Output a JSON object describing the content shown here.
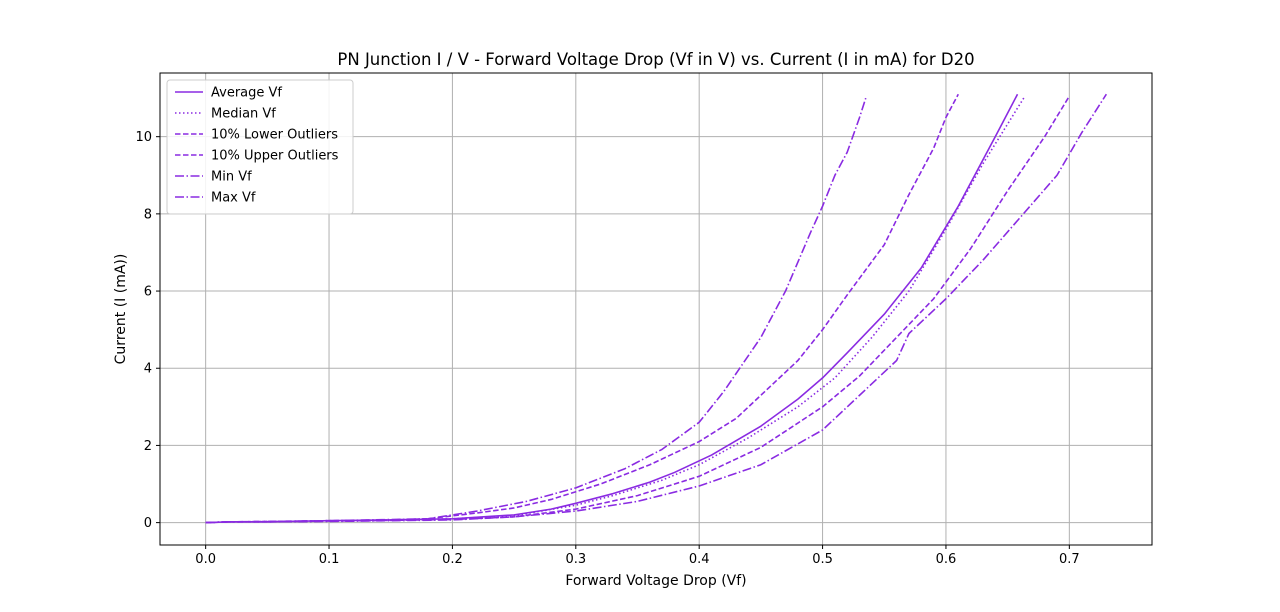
{
  "chart_data": {
    "type": "line",
    "title": "PN Junction I / V - Forward Voltage Drop (Vf in V) vs. Current (I in mA) for D20",
    "xlabel": "Forward Voltage Drop (Vf)",
    "ylabel": "Current (I (mA))",
    "xlim": [
      -0.037,
      0.767
    ],
    "ylim": [
      -0.58,
      11.65
    ],
    "xticks": [
      0.0,
      0.1,
      0.2,
      0.3,
      0.4,
      0.5,
      0.6,
      0.7
    ],
    "xtick_labels": [
      "0.0",
      "0.1",
      "0.2",
      "0.3",
      "0.4",
      "0.5",
      "0.6",
      "0.7"
    ],
    "yticks": [
      0,
      2,
      4,
      6,
      8,
      10
    ],
    "ytick_labels": [
      "0",
      "2",
      "4",
      "6",
      "8",
      "10"
    ],
    "grid": true,
    "legend_position": "upper left",
    "line_color": "#8a2be2",
    "series": [
      {
        "name": "Average Vf",
        "style": "solid",
        "points": [
          [
            0.0,
            0.0
          ],
          [
            0.02,
            0.02
          ],
          [
            0.05,
            0.02
          ],
          [
            0.1,
            0.05
          ],
          [
            0.15,
            0.07
          ],
          [
            0.2,
            0.1
          ],
          [
            0.25,
            0.2
          ],
          [
            0.28,
            0.35
          ],
          [
            0.3,
            0.5
          ],
          [
            0.33,
            0.75
          ],
          [
            0.36,
            1.05
          ],
          [
            0.38,
            1.3
          ],
          [
            0.41,
            1.75
          ],
          [
            0.45,
            2.5
          ],
          [
            0.48,
            3.2
          ],
          [
            0.5,
            3.75
          ],
          [
            0.52,
            4.4
          ],
          [
            0.55,
            5.4
          ],
          [
            0.58,
            6.6
          ],
          [
            0.61,
            8.2
          ],
          [
            0.64,
            10.0
          ],
          [
            0.658,
            11.1
          ]
        ]
      },
      {
        "name": "Median Vf",
        "style": "dotted",
        "points": [
          [
            0.0,
            0.0
          ],
          [
            0.02,
            0.02
          ],
          [
            0.05,
            0.02
          ],
          [
            0.1,
            0.04
          ],
          [
            0.15,
            0.06
          ],
          [
            0.2,
            0.1
          ],
          [
            0.25,
            0.18
          ],
          [
            0.3,
            0.45
          ],
          [
            0.33,
            0.7
          ],
          [
            0.37,
            1.1
          ],
          [
            0.4,
            1.5
          ],
          [
            0.44,
            2.2
          ],
          [
            0.48,
            3.0
          ],
          [
            0.51,
            3.75
          ],
          [
            0.54,
            4.8
          ],
          [
            0.57,
            6.0
          ],
          [
            0.6,
            7.6
          ],
          [
            0.63,
            9.3
          ],
          [
            0.664,
            11.05
          ]
        ]
      },
      {
        "name": "10% Lower Outliers",
        "style": "dashed",
        "points": [
          [
            0.0,
            0.0
          ],
          [
            0.02,
            0.02
          ],
          [
            0.05,
            0.03
          ],
          [
            0.1,
            0.05
          ],
          [
            0.15,
            0.07
          ],
          [
            0.18,
            0.1
          ],
          [
            0.22,
            0.25
          ],
          [
            0.25,
            0.38
          ],
          [
            0.28,
            0.6
          ],
          [
            0.32,
            1.0
          ],
          [
            0.36,
            1.5
          ],
          [
            0.4,
            2.1
          ],
          [
            0.43,
            2.7
          ],
          [
            0.46,
            3.6
          ],
          [
            0.48,
            4.2
          ],
          [
            0.5,
            5.0
          ],
          [
            0.52,
            5.9
          ],
          [
            0.55,
            7.2
          ],
          [
            0.57,
            8.5
          ],
          [
            0.59,
            9.7
          ],
          [
            0.6,
            10.5
          ],
          [
            0.61,
            11.1
          ]
        ]
      },
      {
        "name": "10% Upper Outliers",
        "style": "dashed",
        "points": [
          [
            0.0,
            0.0
          ],
          [
            0.02,
            0.02
          ],
          [
            0.05,
            0.02
          ],
          [
            0.1,
            0.04
          ],
          [
            0.15,
            0.06
          ],
          [
            0.2,
            0.08
          ],
          [
            0.25,
            0.15
          ],
          [
            0.3,
            0.35
          ],
          [
            0.35,
            0.7
          ],
          [
            0.4,
            1.2
          ],
          [
            0.45,
            1.95
          ],
          [
            0.5,
            3.0
          ],
          [
            0.53,
            3.8
          ],
          [
            0.56,
            4.8
          ],
          [
            0.59,
            5.8
          ],
          [
            0.62,
            7.1
          ],
          [
            0.65,
            8.6
          ],
          [
            0.68,
            10.0
          ],
          [
            0.7,
            11.05
          ]
        ]
      },
      {
        "name": "Min Vf",
        "style": "dashdot",
        "points": [
          [
            0.0,
            0.0
          ],
          [
            0.02,
            0.02
          ],
          [
            0.05,
            0.03
          ],
          [
            0.1,
            0.05
          ],
          [
            0.15,
            0.08
          ],
          [
            0.18,
            0.1
          ],
          [
            0.22,
            0.3
          ],
          [
            0.26,
            0.55
          ],
          [
            0.3,
            0.9
          ],
          [
            0.34,
            1.4
          ],
          [
            0.37,
            1.9
          ],
          [
            0.4,
            2.6
          ],
          [
            0.42,
            3.4
          ],
          [
            0.45,
            4.8
          ],
          [
            0.47,
            6.0
          ],
          [
            0.49,
            7.5
          ],
          [
            0.5,
            8.2
          ],
          [
            0.51,
            9.0
          ],
          [
            0.52,
            9.6
          ],
          [
            0.53,
            10.5
          ],
          [
            0.535,
            11.0
          ]
        ]
      },
      {
        "name": "Max Vf",
        "style": "dashdot",
        "points": [
          [
            0.0,
            0.0
          ],
          [
            0.02,
            0.02
          ],
          [
            0.05,
            0.02
          ],
          [
            0.1,
            0.03
          ],
          [
            0.15,
            0.05
          ],
          [
            0.2,
            0.07
          ],
          [
            0.25,
            0.15
          ],
          [
            0.3,
            0.3
          ],
          [
            0.35,
            0.55
          ],
          [
            0.4,
            0.95
          ],
          [
            0.45,
            1.5
          ],
          [
            0.5,
            2.4
          ],
          [
            0.53,
            3.3
          ],
          [
            0.56,
            4.2
          ],
          [
            0.57,
            4.9
          ],
          [
            0.6,
            5.8
          ],
          [
            0.63,
            6.8
          ],
          [
            0.66,
            7.9
          ],
          [
            0.69,
            9.0
          ],
          [
            0.71,
            10.1
          ],
          [
            0.73,
            11.1
          ]
        ]
      }
    ]
  }
}
